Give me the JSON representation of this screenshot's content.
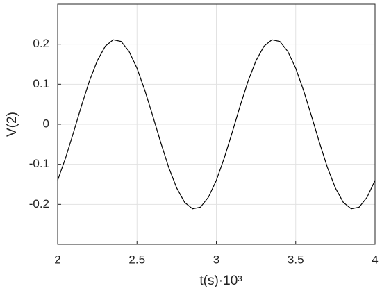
{
  "chart_data": {
    "type": "line",
    "xlabel": "t(s)·10³",
    "ylabel": "V(2)",
    "x": [
      2,
      2.05,
      2.1,
      2.15,
      2.2,
      2.25,
      2.3,
      2.35,
      2.4,
      2.45,
      2.5,
      2.55,
      2.6,
      2.65,
      2.7,
      2.75,
      2.8,
      2.85,
      2.9,
      2.95,
      3,
      3.05,
      3.1,
      3.15,
      3.2,
      3.25,
      3.3,
      3.35,
      3.4,
      3.45,
      3.5,
      3.55,
      3.6,
      3.65,
      3.7,
      3.75,
      3.8,
      3.85,
      3.9,
      3.95,
      4
    ],
    "series": [
      {
        "color": "#000000",
        "values": [
          -0.14,
          -0.084,
          -0.02,
          0.046,
          0.108,
          0.159,
          0.195,
          0.211,
          0.207,
          0.182,
          0.14,
          0.084,
          0.02,
          -0.046,
          -0.108,
          -0.159,
          -0.195,
          -0.211,
          -0.207,
          -0.182,
          -0.14,
          -0.084,
          -0.02,
          0.046,
          0.108,
          0.159,
          0.195,
          0.211,
          0.207,
          0.182,
          0.14,
          0.084,
          0.02,
          -0.046,
          -0.108,
          -0.159,
          -0.195,
          -0.211,
          -0.207,
          -0.182,
          -0.14
        ]
      }
    ],
    "xlim": [
      2,
      4
    ],
    "xticks": [
      2,
      2.5,
      3,
      3.5,
      4
    ],
    "ylim": [
      -0.3,
      0.3
    ],
    "yticks": [
      -0.2,
      -0.1,
      0,
      0.1,
      0.2
    ],
    "grid": true
  }
}
